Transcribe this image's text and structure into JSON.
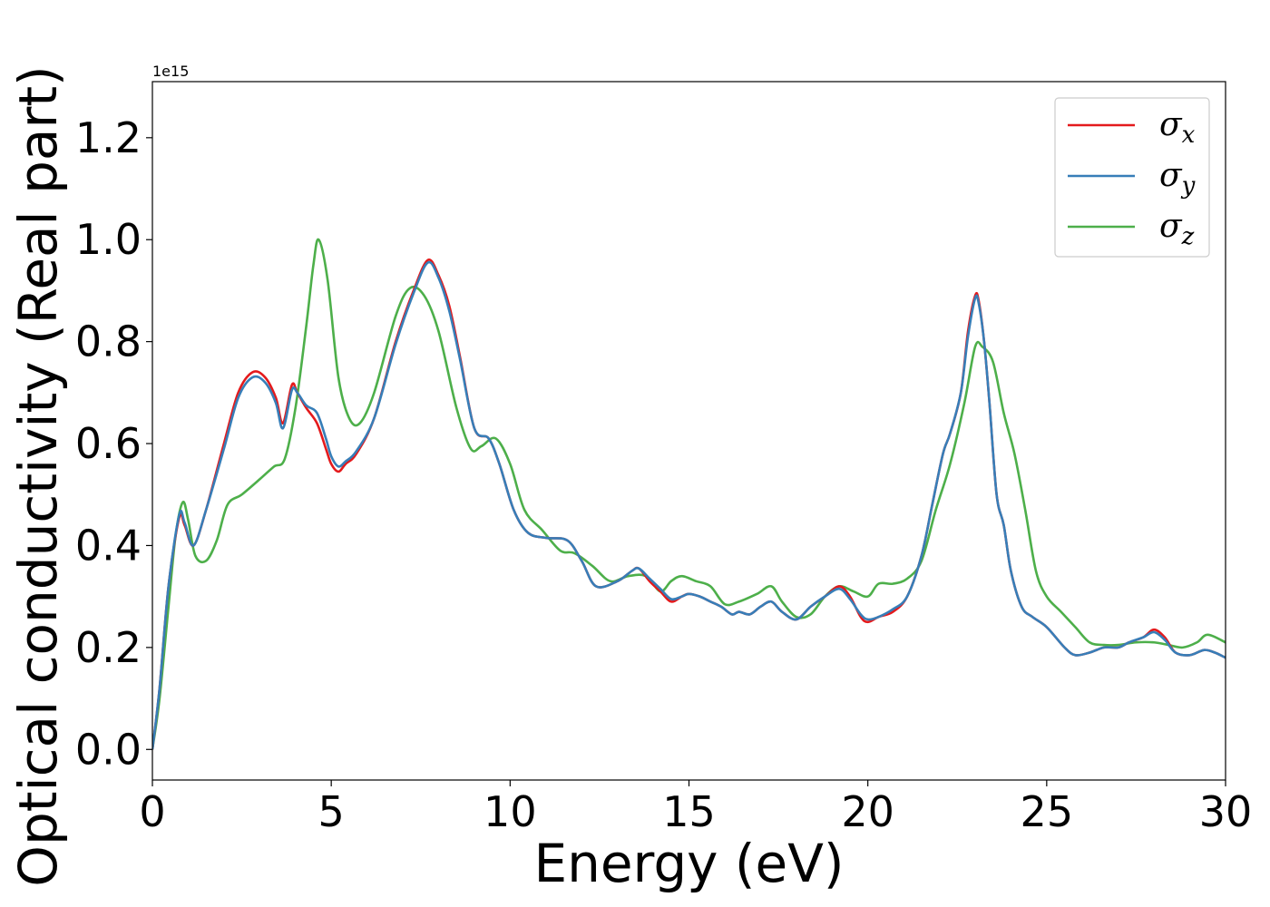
{
  "chart_data": {
    "type": "line",
    "xlabel": "Energy (eV)",
    "ylabel": "Optical conductivity (Real part)",
    "offset_text": "1e15",
    "xlim": [
      0,
      30
    ],
    "ylim": [
      -0.06,
      1.31
    ],
    "xticks": [
      0,
      5,
      10,
      15,
      20,
      25,
      30
    ],
    "xtick_labels": [
      "0",
      "5",
      "10",
      "15",
      "20",
      "25",
      "30"
    ],
    "yticks": [
      0.0,
      0.2,
      0.4,
      0.6,
      0.8,
      1.0,
      1.2
    ],
    "ytick_labels": [
      "0.0",
      "0.2",
      "0.4",
      "0.6",
      "0.8",
      "1.0",
      "1.2"
    ],
    "grid": false,
    "legend_position": "top-right",
    "series": [
      {
        "name": "σx",
        "legend_base": "σ",
        "legend_sub": "x",
        "color": "#e41a1c",
        "x": [
          0,
          0.2,
          0.45,
          0.75,
          0.9,
          1.15,
          1.5,
          2.0,
          2.4,
          2.8,
          3.15,
          3.45,
          3.65,
          3.9,
          4.05,
          4.3,
          4.6,
          4.85,
          5.0,
          5.2,
          5.4,
          5.7,
          6.2,
          6.8,
          7.3,
          7.7,
          8.0,
          8.3,
          8.6,
          9.0,
          9.4,
          9.7,
          10.1,
          10.5,
          11.0,
          11.6,
          12.0,
          12.4,
          13.0,
          13.4,
          13.6,
          13.9,
          14.2,
          14.5,
          14.8,
          15.0,
          15.3,
          15.6,
          15.9,
          16.2,
          16.4,
          16.7,
          17.0,
          17.3,
          17.6,
          18.0,
          18.4,
          18.8,
          19.2,
          19.5,
          19.8,
          20.0,
          20.3,
          20.7,
          21.1,
          21.5,
          21.8,
          22.1,
          22.3,
          22.6,
          22.8,
          23.0,
          23.1,
          23.25,
          23.4,
          23.6,
          23.8,
          24.0,
          24.3,
          24.6,
          25.0,
          25.5,
          25.8,
          26.2,
          26.6,
          27.0,
          27.3,
          27.7,
          28.0,
          28.3,
          28.6,
          29.0,
          29.4,
          29.7,
          30.0
        ],
        "values": [
          0.0,
          0.12,
          0.32,
          0.455,
          0.44,
          0.4,
          0.47,
          0.6,
          0.7,
          0.74,
          0.73,
          0.69,
          0.64,
          0.715,
          0.7,
          0.67,
          0.64,
          0.59,
          0.56,
          0.545,
          0.56,
          0.58,
          0.65,
          0.8,
          0.9,
          0.96,
          0.93,
          0.87,
          0.77,
          0.63,
          0.61,
          0.56,
          0.47,
          0.425,
          0.415,
          0.41,
          0.37,
          0.32,
          0.33,
          0.35,
          0.355,
          0.33,
          0.31,
          0.29,
          0.3,
          0.305,
          0.3,
          0.29,
          0.28,
          0.265,
          0.27,
          0.265,
          0.28,
          0.29,
          0.27,
          0.255,
          0.28,
          0.3,
          0.32,
          0.3,
          0.26,
          0.25,
          0.26,
          0.27,
          0.3,
          0.38,
          0.48,
          0.58,
          0.62,
          0.7,
          0.82,
          0.89,
          0.88,
          0.8,
          0.68,
          0.5,
          0.44,
          0.35,
          0.28,
          0.26,
          0.24,
          0.2,
          0.185,
          0.19,
          0.2,
          0.2,
          0.21,
          0.22,
          0.235,
          0.22,
          0.19,
          0.185,
          0.195,
          0.19,
          0.18
        ]
      },
      {
        "name": "σy",
        "legend_base": "σ",
        "legend_sub": "y",
        "color": "#377eb8",
        "x": [
          0,
          0.2,
          0.45,
          0.75,
          0.9,
          1.15,
          1.5,
          2.0,
          2.4,
          2.8,
          3.15,
          3.45,
          3.65,
          3.9,
          4.05,
          4.3,
          4.6,
          4.85,
          5.0,
          5.2,
          5.4,
          5.7,
          6.2,
          6.8,
          7.3,
          7.7,
          8.0,
          8.3,
          8.6,
          9.0,
          9.4,
          9.7,
          10.1,
          10.5,
          11.0,
          11.6,
          12.0,
          12.4,
          13.0,
          13.4,
          13.6,
          13.9,
          14.2,
          14.5,
          14.8,
          15.0,
          15.3,
          15.6,
          15.9,
          16.2,
          16.4,
          16.7,
          17.0,
          17.3,
          17.6,
          18.0,
          18.4,
          18.8,
          19.2,
          19.5,
          19.8,
          20.0,
          20.3,
          20.7,
          21.1,
          21.5,
          21.8,
          22.1,
          22.3,
          22.6,
          22.8,
          23.0,
          23.1,
          23.25,
          23.4,
          23.6,
          23.8,
          24.0,
          24.3,
          24.6,
          25.0,
          25.5,
          25.8,
          26.2,
          26.6,
          27.0,
          27.3,
          27.7,
          28.0,
          28.3,
          28.6,
          29.0,
          29.4,
          29.7,
          30.0
        ],
        "values": [
          0.0,
          0.12,
          0.32,
          0.46,
          0.445,
          0.4,
          0.47,
          0.59,
          0.69,
          0.73,
          0.72,
          0.68,
          0.63,
          0.705,
          0.7,
          0.675,
          0.66,
          0.61,
          0.575,
          0.555,
          0.565,
          0.585,
          0.65,
          0.795,
          0.895,
          0.955,
          0.925,
          0.86,
          0.765,
          0.63,
          0.61,
          0.56,
          0.47,
          0.425,
          0.415,
          0.41,
          0.37,
          0.32,
          0.33,
          0.35,
          0.355,
          0.335,
          0.315,
          0.295,
          0.3,
          0.305,
          0.3,
          0.29,
          0.28,
          0.265,
          0.27,
          0.265,
          0.28,
          0.29,
          0.27,
          0.255,
          0.28,
          0.3,
          0.315,
          0.295,
          0.265,
          0.255,
          0.26,
          0.275,
          0.3,
          0.38,
          0.48,
          0.58,
          0.62,
          0.7,
          0.81,
          0.885,
          0.875,
          0.8,
          0.68,
          0.5,
          0.44,
          0.35,
          0.28,
          0.26,
          0.24,
          0.2,
          0.185,
          0.19,
          0.2,
          0.2,
          0.21,
          0.22,
          0.23,
          0.215,
          0.19,
          0.185,
          0.195,
          0.19,
          0.18
        ]
      },
      {
        "name": "σz",
        "legend_base": "σ",
        "legend_sub": "z",
        "color": "#4daf4a",
        "x": [
          0,
          0.2,
          0.45,
          0.65,
          0.85,
          1.0,
          1.2,
          1.5,
          1.8,
          2.1,
          2.5,
          3.0,
          3.4,
          3.7,
          4.0,
          4.3,
          4.5,
          4.65,
          4.9,
          5.2,
          5.5,
          5.8,
          6.2,
          6.8,
          7.2,
          7.6,
          8.0,
          8.5,
          8.9,
          9.2,
          9.6,
          10.0,
          10.4,
          10.9,
          11.4,
          11.8,
          12.3,
          12.8,
          13.3,
          13.8,
          14.2,
          14.5,
          14.8,
          15.2,
          15.6,
          16.0,
          16.4,
          16.9,
          17.3,
          17.6,
          18.0,
          18.4,
          18.8,
          19.2,
          19.6,
          20.0,
          20.3,
          20.7,
          21.1,
          21.5,
          21.9,
          22.3,
          22.7,
          23.0,
          23.2,
          23.5,
          23.8,
          24.1,
          24.4,
          24.7,
          25.0,
          25.4,
          25.8,
          26.2,
          26.6,
          27.0,
          27.5,
          28.0,
          28.4,
          28.8,
          29.2,
          29.5,
          30.0
        ],
        "values": [
          0.0,
          0.1,
          0.28,
          0.42,
          0.485,
          0.45,
          0.38,
          0.37,
          0.41,
          0.48,
          0.5,
          0.53,
          0.555,
          0.57,
          0.67,
          0.83,
          0.95,
          1.0,
          0.92,
          0.73,
          0.65,
          0.64,
          0.7,
          0.85,
          0.905,
          0.89,
          0.82,
          0.67,
          0.59,
          0.595,
          0.61,
          0.56,
          0.47,
          0.43,
          0.39,
          0.385,
          0.36,
          0.33,
          0.34,
          0.34,
          0.31,
          0.33,
          0.34,
          0.33,
          0.32,
          0.285,
          0.29,
          0.305,
          0.32,
          0.29,
          0.26,
          0.265,
          0.3,
          0.32,
          0.31,
          0.3,
          0.325,
          0.325,
          0.335,
          0.37,
          0.47,
          0.56,
          0.68,
          0.79,
          0.79,
          0.76,
          0.66,
          0.58,
          0.47,
          0.35,
          0.3,
          0.27,
          0.24,
          0.21,
          0.205,
          0.205,
          0.21,
          0.21,
          0.205,
          0.2,
          0.21,
          0.225,
          0.21
        ]
      }
    ]
  }
}
